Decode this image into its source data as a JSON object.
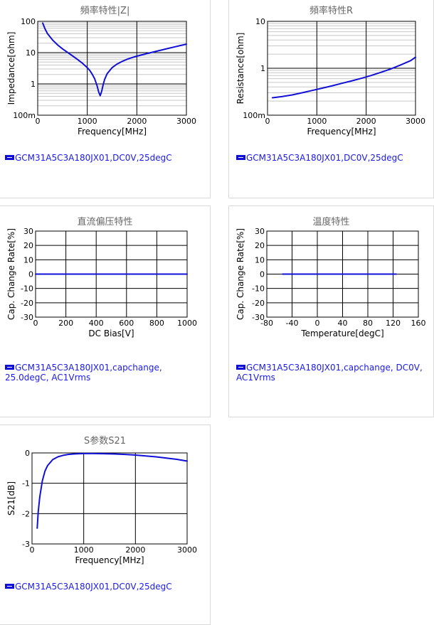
{
  "colors": {
    "series": "#1010d8",
    "grid_major": "#000000",
    "grid_minor": "#c8c8c8",
    "legend_text": "#1a1aee"
  },
  "chart_data": [
    {
      "id": "impedance",
      "type": "line",
      "title": "頻率特性|Z|",
      "xlabel": "Frequency[MHz]",
      "ylabel": "Impedance[ohm]",
      "xlim": [
        0,
        3000
      ],
      "ylim": [
        0.1,
        100
      ],
      "yscale": "log",
      "x_ticks": [
        "0",
        "1000",
        "2000",
        "3000"
      ],
      "y_ticks": [
        "100m",
        "1",
        "10",
        "100"
      ],
      "grid": true,
      "legend": "GCM31A5C3A180JX01,DC0V,25degC",
      "series": [
        {
          "x": [
            100,
            150,
            200,
            300,
            400,
            500,
            600,
            700,
            800,
            900,
            1000,
            1050,
            1100,
            1150,
            1200,
            1230,
            1260,
            1290,
            1320,
            1350,
            1400,
            1500,
            1600,
            1700,
            1800,
            1900,
            2000,
            2200,
            2400,
            2600,
            2800,
            3000
          ],
          "y": [
            88,
            56,
            40,
            25.3,
            17.7,
            13.2,
            10.2,
            7.9,
            6.1,
            4.6,
            3.3,
            2.7,
            2.05,
            1.45,
            0.85,
            0.55,
            0.42,
            0.58,
            0.95,
            1.4,
            2.1,
            3.3,
            4.3,
            5.2,
            6.1,
            6.9,
            7.7,
            9.3,
            11.1,
            13.3,
            15.8,
            18.6
          ]
        }
      ]
    },
    {
      "id": "resistance",
      "type": "line",
      "title": "頻率特性R",
      "xlabel": "Frequency[MHz]",
      "ylabel": "Resistance[ohm]",
      "xlim": [
        0,
        3000
      ],
      "ylim": [
        0.1,
        10
      ],
      "yscale": "log",
      "x_ticks": [
        "0",
        "1000",
        "2000",
        "3000"
      ],
      "y_ticks": [
        "100m",
        "1",
        "10"
      ],
      "grid": true,
      "legend": "GCM31A5C3A180JX01,DC0V,25degC",
      "series": [
        {
          "x": [
            100,
            300,
            500,
            700,
            900,
            1100,
            1300,
            1500,
            1700,
            1900,
            2100,
            2300,
            2500,
            2700,
            2900,
            3000
          ],
          "y": [
            0.235,
            0.25,
            0.27,
            0.3,
            0.335,
            0.375,
            0.42,
            0.475,
            0.535,
            0.61,
            0.7,
            0.82,
            0.97,
            1.18,
            1.45,
            1.72
          ]
        }
      ]
    },
    {
      "id": "dc_bias",
      "type": "line",
      "title": "直流偏压特性",
      "xlabel": "DC Bias[V]",
      "ylabel": "Cap. Change Rate[%]",
      "xlim": [
        0,
        1000
      ],
      "ylim": [
        -30,
        30
      ],
      "x_ticks": [
        "0",
        "200",
        "400",
        "600",
        "800",
        "1000"
      ],
      "y_ticks": [
        "-30",
        "-20",
        "-10",
        "0",
        "10",
        "20",
        "30"
      ],
      "grid": true,
      "legend": "GCM31A5C3A180JX01,capchange, 25.0degC, AC1Vrms",
      "series": [
        {
          "x": [
            0,
            1000
          ],
          "y": [
            0,
            0
          ]
        }
      ]
    },
    {
      "id": "temperature",
      "type": "line",
      "title": "温度特性",
      "xlabel": "Temperature[degC]",
      "ylabel": "Cap. Change Rate[%]",
      "xlim": [
        -80,
        160
      ],
      "ylim": [
        -30,
        30
      ],
      "x_ticks": [
        "-80",
        "-40",
        "0",
        "40",
        "80",
        "120",
        "160"
      ],
      "y_ticks": [
        "-30",
        "-20",
        "-10",
        "0",
        "10",
        "20",
        "30"
      ],
      "grid": true,
      "legend": "GCM31A5C3A180JX01,capchange, DC0V, AC1Vrms",
      "series": [
        {
          "x": [
            -55,
            125
          ],
          "y": [
            0,
            0
          ]
        }
      ]
    },
    {
      "id": "s21",
      "type": "line",
      "title": "S参数S21",
      "xlabel": "Frequency[MHz]",
      "ylabel": "S21[dB]",
      "xlim": [
        0,
        3000
      ],
      "ylim": [
        -3,
        0
      ],
      "x_ticks": [
        "0",
        "1000",
        "2000",
        "3000"
      ],
      "y_ticks": [
        "-3",
        "-2",
        "-1",
        "0"
      ],
      "grid": true,
      "legend": "GCM31A5C3A180JX01,DC0V,25degC",
      "series": [
        {
          "x": [
            100,
            120,
            150,
            200,
            250,
            300,
            400,
            500,
            600,
            700,
            800,
            900,
            1000,
            1200,
            1400,
            1600,
            1800,
            2000,
            2200,
            2400,
            2600,
            2800,
            3000
          ],
          "y": [
            -2.48,
            -1.95,
            -1.45,
            -0.92,
            -0.6,
            -0.42,
            -0.22,
            -0.13,
            -0.08,
            -0.05,
            -0.035,
            -0.025,
            -0.02,
            -0.02,
            -0.025,
            -0.035,
            -0.05,
            -0.07,
            -0.1,
            -0.13,
            -0.17,
            -0.21,
            -0.27
          ]
        }
      ]
    }
  ]
}
